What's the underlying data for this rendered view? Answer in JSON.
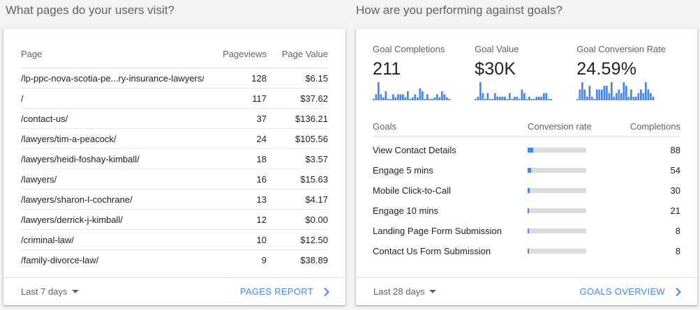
{
  "pages_section": {
    "title": "What pages do your users visit?",
    "columns": {
      "page": "Page",
      "pageviews": "Pageviews",
      "value": "Page Value"
    },
    "rows": [
      {
        "page": "/lp-ppc-nova-scotia-pe...ry-insurance-lawyers/",
        "pageviews": "128",
        "value": "$6.15"
      },
      {
        "page": "/",
        "pageviews": "117",
        "value": "$37.62"
      },
      {
        "page": "/contact-us/",
        "pageviews": "37",
        "value": "$136.21"
      },
      {
        "page": "/lawyers/tim-a-peacock/",
        "pageviews": "24",
        "value": "$105.56"
      },
      {
        "page": "/lawyers/heidi-foshay-kimball/",
        "pageviews": "18",
        "value": "$3.57"
      },
      {
        "page": "/lawyers/",
        "pageviews": "16",
        "value": "$15.63"
      },
      {
        "page": "/lawyers/sharon-l-cochrane/",
        "pageviews": "13",
        "value": "$4.17"
      },
      {
        "page": "/lawyers/derrick-j-kimball/",
        "pageviews": "12",
        "value": "$0.00"
      },
      {
        "page": "/criminal-law/",
        "pageviews": "10",
        "value": "$12.50"
      },
      {
        "page": "/family-divorce-law/",
        "pageviews": "9",
        "value": "$38.89"
      }
    ],
    "footer": {
      "date_range": "Last 7 days",
      "link": "PAGES REPORT"
    }
  },
  "goals_section": {
    "title": "How are you performing against goals?",
    "metrics": [
      {
        "label": "Goal Completions",
        "value": "211",
        "spark": [
          0,
          2,
          6,
          2,
          1,
          3,
          0,
          0,
          2,
          1,
          2,
          2,
          2,
          1,
          3,
          0,
          1,
          2,
          1,
          4,
          3,
          0,
          2,
          0,
          0,
          1,
          2,
          1,
          3,
          2,
          1,
          0
        ]
      },
      {
        "label": "Goal Value",
        "value": "$30K",
        "spark": [
          0,
          1,
          5,
          2,
          0,
          2,
          0,
          0,
          2,
          1,
          1,
          1,
          1,
          0,
          2,
          0,
          1,
          1,
          0,
          3,
          2,
          0,
          1,
          0,
          0,
          1,
          1,
          1,
          2,
          2,
          0,
          0
        ]
      },
      {
        "label": "Goal Conversion Rate",
        "value": "24.59%",
        "spark": [
          0,
          3,
          5,
          3,
          1,
          4,
          1,
          0,
          3,
          3,
          3,
          4,
          4,
          2,
          5,
          1,
          2,
          3,
          2,
          5,
          4,
          1,
          3,
          1,
          1,
          2,
          3,
          2,
          5,
          3,
          2,
          1
        ]
      }
    ],
    "columns": {
      "goals": "Goals",
      "rate": "Conversion rate",
      "completions": "Completions"
    },
    "rows": [
      {
        "name": "View Contact Details",
        "rate": 0.1,
        "completions": "88"
      },
      {
        "name": "Engage 5 mins",
        "rate": 0.06,
        "completions": "54"
      },
      {
        "name": "Mobile Click-to-Call",
        "rate": 0.035,
        "completions": "30"
      },
      {
        "name": "Engage 10 mins",
        "rate": 0.025,
        "completions": "21"
      },
      {
        "name": "Landing Page Form Submission",
        "rate": 0.01,
        "completions": "8"
      },
      {
        "name": "Contact Us Form Submission",
        "rate": 0.01,
        "completions": "8"
      }
    ],
    "footer": {
      "date_range": "Last 28 days",
      "link": "GOALS OVERVIEW"
    }
  },
  "colors": {
    "accent": "#4285f4",
    "track": "#dadce0"
  }
}
